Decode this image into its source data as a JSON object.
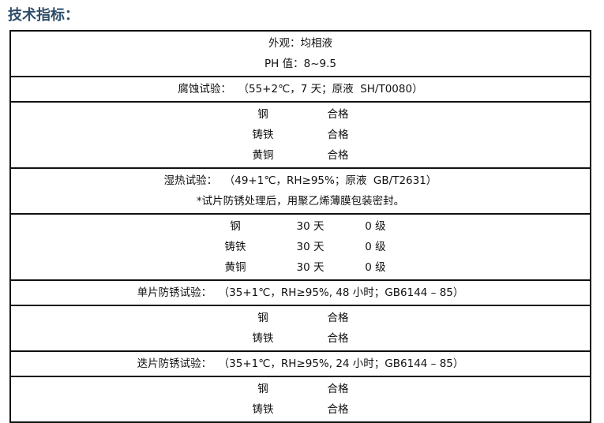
{
  "title": "技术指标：",
  "appearance": "外观：均相液",
  "ph": "PH 值：8~9.5",
  "corrosion": {
    "header": "腐蚀试验：  （55+2℃，7 天；原液  SH/T0080）",
    "rows": [
      {
        "metal": "钢",
        "result": "合格"
      },
      {
        "metal": "铸铁",
        "result": "合格"
      },
      {
        "metal": "黄铜",
        "result": "合格"
      }
    ]
  },
  "humid": {
    "header": "湿热试验：  （49+1℃，RH≥95%；原液  GB/T2631）",
    "note": "*试片防锈处理后，用聚乙烯薄膜包装密封。",
    "rows": [
      {
        "metal": "钢",
        "days": "30 天",
        "grade": "0 级"
      },
      {
        "metal": "铸铁",
        "days": "30 天",
        "grade": "0 级"
      },
      {
        "metal": "黄铜",
        "days": "30 天",
        "grade": "0 级"
      }
    ]
  },
  "single": {
    "header": "单片防锈试验：  （35+1℃，RH≥95%, 48 小时；GB6144 – 85）",
    "rows": [
      {
        "metal": "钢",
        "result": "合格"
      },
      {
        "metal": "铸铁",
        "result": "合格"
      }
    ]
  },
  "stacked": {
    "header": "迭片防锈试验：  （35+1℃，RH≥95%, 24 小时；GB6144 – 85）",
    "rows": [
      {
        "metal": "钢",
        "result": "合格"
      },
      {
        "metal": "铸铁",
        "result": "合格"
      }
    ]
  }
}
